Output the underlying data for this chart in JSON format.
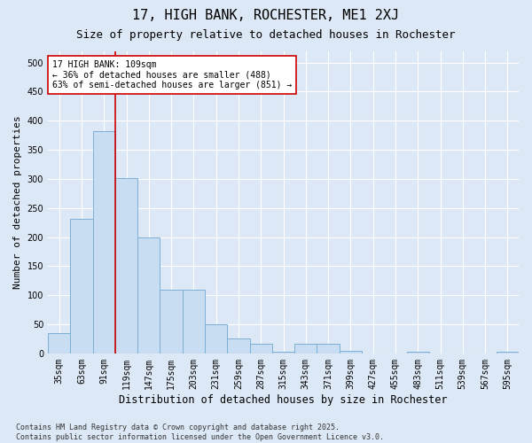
{
  "title": "17, HIGH BANK, ROCHESTER, ME1 2XJ",
  "subtitle": "Size of property relative to detached houses in Rochester",
  "xlabel": "Distribution of detached houses by size in Rochester",
  "ylabel": "Number of detached properties",
  "categories": [
    "35sqm",
    "63sqm",
    "91sqm",
    "119sqm",
    "147sqm",
    "175sqm",
    "203sqm",
    "231sqm",
    "259sqm",
    "287sqm",
    "315sqm",
    "343sqm",
    "371sqm",
    "399sqm",
    "427sqm",
    "455sqm",
    "483sqm",
    "511sqm",
    "539sqm",
    "567sqm",
    "595sqm"
  ],
  "values": [
    35,
    232,
    382,
    302,
    200,
    110,
    110,
    50,
    25,
    17,
    3,
    17,
    17,
    5,
    0,
    0,
    3,
    0,
    0,
    0,
    3
  ],
  "bar_color": "#c8ddf2",
  "bar_edge_color": "#7bafd4",
  "vline_color": "#cc0000",
  "annotation_text": "17 HIGH BANK: 109sqm\n← 36% of detached houses are smaller (488)\n63% of semi-detached houses are larger (851) →",
  "annotation_box_color": "#ffffff",
  "annotation_box_edge": "#cc0000",
  "background_color": "#dce8f5",
  "grid_color": "#ffffff",
  "ylim": [
    0,
    520
  ],
  "yticks": [
    0,
    50,
    100,
    150,
    200,
    250,
    300,
    350,
    400,
    450,
    500
  ],
  "footnote": "Contains HM Land Registry data © Crown copyright and database right 2025.\nContains public sector information licensed under the Open Government Licence v3.0.",
  "title_fontsize": 11,
  "subtitle_fontsize": 9,
  "xlabel_fontsize": 8.5,
  "ylabel_fontsize": 8,
  "tick_fontsize": 7,
  "annotation_fontsize": 7,
  "footnote_fontsize": 6
}
